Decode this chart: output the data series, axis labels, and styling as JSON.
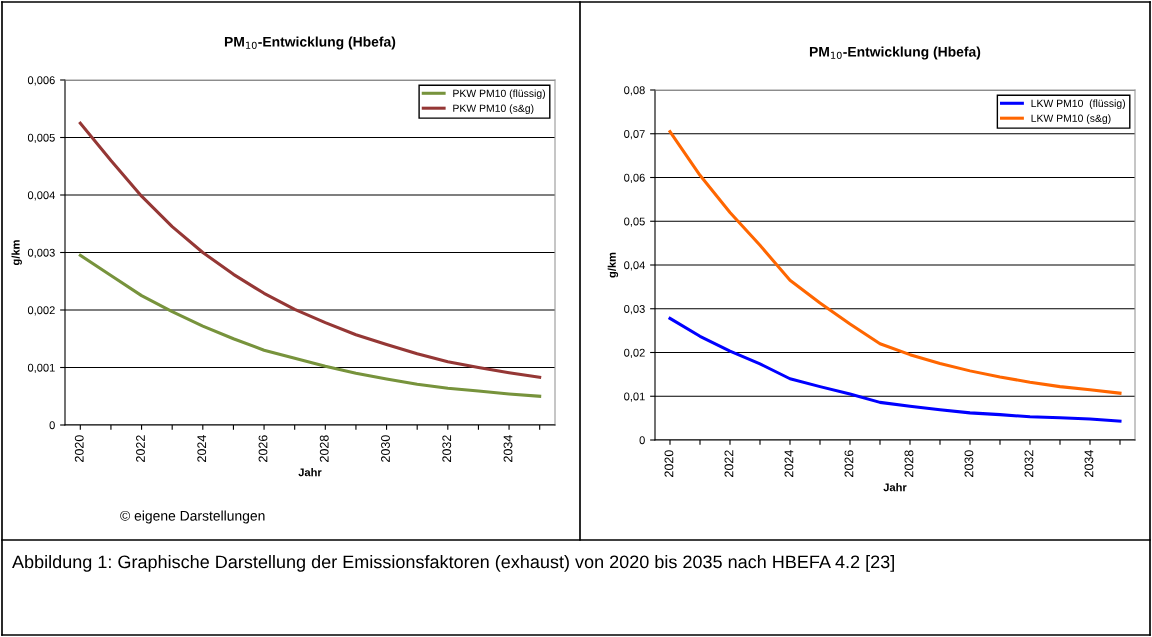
{
  "chart_data": [
    {
      "type": "line",
      "title": "PM$_{10}$-Entwicklung (Hbefa)",
      "xlabel": "Jahr",
      "ylabel": "g/km",
      "categories": [
        "2020",
        null,
        "2022",
        null,
        "2024",
        null,
        "2026",
        null,
        "2028",
        null,
        "2030",
        null,
        "2032",
        null,
        "2034",
        null
      ],
      "series": [
        {
          "name": "PKW PM10 (flüssig)",
          "color": "#77933c",
          "values": [
            0.00295,
            0.0026,
            0.00225,
            0.00197,
            0.00172,
            0.0015,
            0.0013,
            0.00116,
            0.00102,
            0.0009,
            0.0008,
            0.00071,
            0.00064,
            0.00059,
            0.00054,
            0.0005
          ]
        },
        {
          "name": "PKW PM10 (s&g)",
          "color": "#953735",
          "values": [
            0.00525,
            0.0046,
            0.00398,
            0.00345,
            0.003,
            0.00262,
            0.00229,
            0.00201,
            0.00178,
            0.00157,
            0.0014,
            0.00124,
            0.0011,
            0.001,
            0.00091,
            0.00083
          ]
        }
      ],
      "ylim": [
        0,
        0.006
      ],
      "yticks": [
        0,
        {
          "value": 0.001,
          "label": "0,001"
        },
        {
          "value": 0.002,
          "label": "0,002"
        },
        {
          "value": 0.003,
          "label": "0,003"
        },
        {
          "value": 0.004,
          "label": "0,004"
        },
        {
          "value": 0.005,
          "label": "0,005"
        },
        {
          "value": 0.006,
          "label": "0,006"
        }
      ],
      "grid": "y",
      "legend": "top right",
      "marker": "none",
      "line_style": "solid",
      "annotations": [
        "© eigene Darstellungen",
        "Abbildung 1: Graphische Darstellung der Emissionsfaktoren (exhaust) von 2020 bis 2035 nach HBEFA 4.2 [23]"
      ]
    },
    {
      "type": "line",
      "title": "PM$_{10}$-Entwicklung (Hbefa)",
      "xlabel": "Jahr",
      "ylabel": "g/km",
      "categories": [
        "2020",
        null,
        "2022",
        null,
        "2024",
        null,
        "2026",
        null,
        "2028",
        null,
        "2030",
        null,
        "2032",
        null,
        "2034",
        null
      ],
      "series": [
        {
          "name": "LKW PM10  (flüssig)",
          "color": "#0000ff",
          "values": [
            0.0278,
            0.0237,
            0.0203,
            0.0174,
            0.014,
            0.0122,
            0.0105,
            0.0086,
            0.0077,
            0.0069,
            0.0062,
            0.0058,
            0.0053,
            0.0051,
            0.0048,
            0.0043
          ]
        },
        {
          "name": "LKW PM10 (s&g)",
          "color": "#ff6600",
          "values": [
            0.0705,
            0.0605,
            0.052,
            0.0445,
            0.0365,
            0.0313,
            0.0265,
            0.022,
            0.0195,
            0.0175,
            0.0158,
            0.0144,
            0.0132,
            0.0122,
            0.0115,
            0.0107
          ]
        }
      ],
      "ylim": [
        0,
        0.08
      ],
      "yticks": [
        0,
        {
          "value": 0.01,
          "label": "0,01"
        },
        {
          "value": 0.02,
          "label": "0,02"
        },
        {
          "value": 0.03,
          "label": "0,03"
        },
        {
          "value": 0.04,
          "label": "0,04"
        },
        {
          "value": 0.05,
          "label": "0,05"
        },
        {
          "value": 0.06,
          "label": "0,06"
        },
        {
          "value": 0.07,
          "label": "0,07"
        },
        {
          "value": 0.08,
          "label": "0,08"
        }
      ],
      "grid": "y",
      "legend": "top right",
      "marker": "none",
      "line_style": "solid"
    }
  ]
}
